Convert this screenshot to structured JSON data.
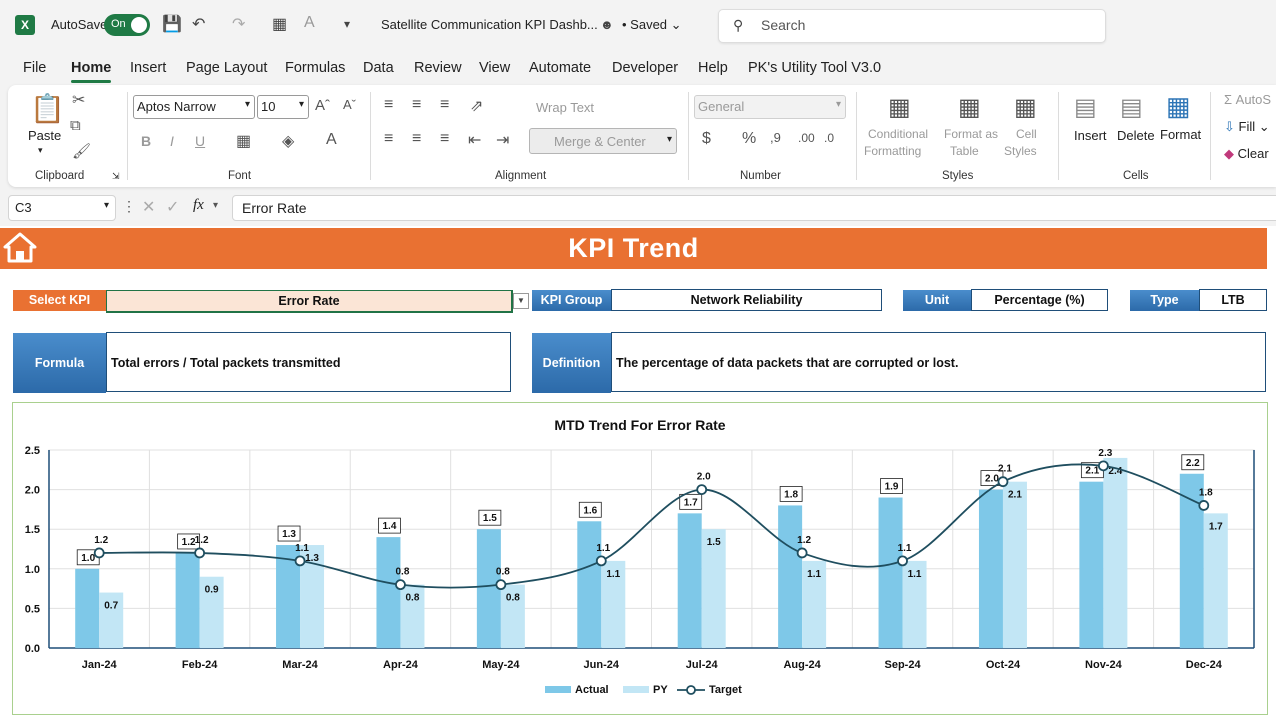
{
  "app": {
    "autosave_label": "AutoSave",
    "autosave_state": "On",
    "doc_title": "Satellite Communication KPI Dashb...",
    "saved_label": "• Saved",
    "search_placeholder": "Search"
  },
  "menu": [
    "File",
    "Home",
    "Insert",
    "Page Layout",
    "Formulas",
    "Data",
    "Review",
    "View",
    "Automate",
    "Developer",
    "Help",
    "PK's Utility Tool V3.0"
  ],
  "ribbon": {
    "clipboard": {
      "paste": "Paste",
      "label": "Clipboard"
    },
    "font": {
      "name": "Aptos Narrow",
      "size": "10",
      "label": "Font"
    },
    "alignment": {
      "wrap": "Wrap Text",
      "merge": "Merge & Center",
      "label": "Alignment"
    },
    "number": {
      "format": "General",
      "label": "Number"
    },
    "styles": {
      "cond1": "Conditional",
      "cond2": "Formatting",
      "fmt1": "Format as",
      "fmt2": "Table",
      "cell1": "Cell",
      "cell2": "Styles",
      "label": "Styles"
    },
    "cells": {
      "insert": "Insert",
      "delete": "Delete",
      "format": "Format",
      "label": "Cells"
    },
    "editing": {
      "autosum": "AutoS",
      "fill": "Fill",
      "clear": "Clear"
    }
  },
  "formula_bar": {
    "cell_ref": "C3",
    "fx": "fx",
    "content": "Error Rate"
  },
  "sheet": {
    "banner_title": "KPI Trend",
    "select_kpi_label": "Select KPI",
    "select_kpi_value": "Error Rate",
    "kpi_group_label": "KPI Group",
    "kpi_group_value": "Network Reliability",
    "unit_label": "Unit",
    "unit_value": "Percentage (%)",
    "type_label": "Type",
    "type_value": "LTB",
    "formula_label": "Formula",
    "formula_value": "Total errors / Total packets transmitted",
    "definition_label": "Definition",
    "definition_value": "The percentage of data packets that are corrupted or lost."
  },
  "colors": {
    "accent": "#e97132",
    "actual": "#7ec8e8",
    "py": "#c2e6f5",
    "target": "#1f4e5f",
    "header_blue": "#2e75b6"
  },
  "chart_data": {
    "type": "bar",
    "title": "MTD Trend For Error Rate",
    "categories": [
      "Jan-24",
      "Feb-24",
      "Mar-24",
      "Apr-24",
      "May-24",
      "Jun-24",
      "Jul-24",
      "Aug-24",
      "Sep-24",
      "Oct-24",
      "Nov-24",
      "Dec-24"
    ],
    "series": [
      {
        "name": "Actual",
        "type": "bar",
        "values": [
          1.0,
          1.2,
          1.3,
          1.4,
          1.5,
          1.6,
          1.7,
          1.8,
          1.9,
          2.0,
          2.1,
          2.2
        ]
      },
      {
        "name": "PY",
        "type": "bar",
        "values": [
          0.7,
          0.9,
          1.3,
          0.8,
          0.8,
          1.1,
          1.5,
          1.1,
          1.1,
          2.1,
          2.4,
          1.7
        ]
      },
      {
        "name": "Target",
        "type": "line",
        "values": [
          1.2,
          1.2,
          1.1,
          0.8,
          0.8,
          1.1,
          2.0,
          1.2,
          1.1,
          2.1,
          2.3,
          1.8
        ]
      }
    ],
    "ylim": [
      0,
      2.5
    ],
    "yticks": [
      "0.0",
      "0.5",
      "1.0",
      "1.5",
      "2.0",
      "2.5"
    ],
    "grid": true,
    "legend": "bottom"
  }
}
